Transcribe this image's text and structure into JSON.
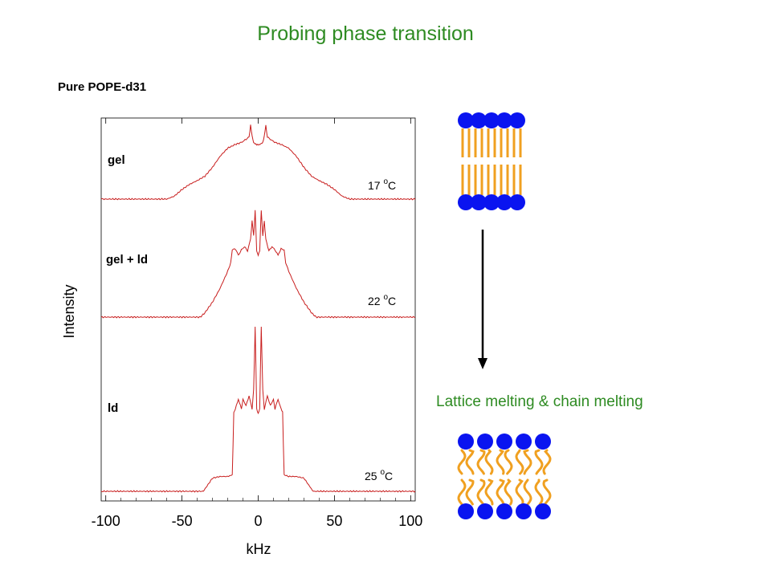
{
  "slide": {
    "title": "Probing phase transition",
    "sample_label": "Pure POPE-d31",
    "right_caption": "Lattice melting & chain melting"
  },
  "chart_data": {
    "type": "line",
    "title": "",
    "xlabel": "kHz",
    "ylabel": "Intensity",
    "xlim": [
      -103,
      103
    ],
    "xticks": [
      -100,
      -50,
      0,
      50,
      100
    ],
    "tick_labels": [
      "-100",
      "-50",
      "0",
      "50",
      "100"
    ],
    "grid": false,
    "line_color": "#c81e1e",
    "series": [
      {
        "name": "gel",
        "temperature": "17",
        "temperature_unit": "C",
        "x": [
          -103,
          -60,
          -55,
          -50,
          -45,
          -40,
          -35,
          -30,
          -25,
          -20,
          -17,
          -15,
          -12,
          -10,
          -8,
          -6,
          -5,
          -4,
          -3,
          -2,
          -1,
          0,
          1,
          2,
          3,
          4,
          5,
          6,
          8,
          10,
          12,
          15,
          17,
          20,
          25,
          30,
          35,
          40,
          45,
          50,
          55,
          60,
          103
        ],
        "y": [
          0,
          0,
          0.04,
          0.13,
          0.2,
          0.25,
          0.31,
          0.43,
          0.58,
          0.69,
          0.72,
          0.74,
          0.76,
          0.78,
          0.81,
          0.84,
          1.0,
          0.85,
          0.76,
          0.75,
          0.74,
          0.74,
          0.74,
          0.75,
          0.76,
          0.85,
          1.0,
          0.84,
          0.81,
          0.78,
          0.76,
          0.74,
          0.72,
          0.69,
          0.58,
          0.43,
          0.31,
          0.25,
          0.2,
          0.13,
          0.04,
          0,
          0
        ]
      },
      {
        "name": "gel + ld",
        "temperature": "22",
        "temperature_unit": "C",
        "x": [
          -103,
          -38,
          -35,
          -30,
          -25,
          -20,
          -18,
          -17,
          -15,
          -13,
          -11,
          -9,
          -7,
          -5,
          -4,
          -3,
          -2,
          -1,
          0,
          1,
          2,
          3,
          4,
          5,
          7,
          9,
          11,
          13,
          15,
          17,
          18,
          20,
          25,
          30,
          35,
          38,
          103
        ],
        "y": [
          0,
          0,
          0.04,
          0.14,
          0.27,
          0.43,
          0.51,
          0.63,
          0.64,
          0.58,
          0.63,
          0.66,
          0.62,
          0.73,
          0.9,
          0.76,
          1.0,
          0.62,
          0.58,
          0.62,
          1.0,
          0.76,
          0.9,
          0.73,
          0.62,
          0.66,
          0.63,
          0.58,
          0.64,
          0.63,
          0.51,
          0.43,
          0.27,
          0.14,
          0.04,
          0,
          0
        ]
      },
      {
        "name": "ld",
        "temperature": "25",
        "temperature_unit": "C",
        "x": [
          -103,
          -36,
          -33,
          -30,
          -25,
          -20,
          -17,
          -16,
          -15,
          -13,
          -11,
          -10,
          -8,
          -6,
          -4,
          -3,
          -2,
          -1,
          0,
          1,
          2,
          3,
          4,
          6,
          8,
          10,
          11,
          13,
          15,
          16,
          17,
          20,
          25,
          30,
          33,
          36,
          103
        ],
        "y": [
          0,
          0,
          0.04,
          0.08,
          0.09,
          0.09,
          0.1,
          0.48,
          0.5,
          0.56,
          0.5,
          0.56,
          0.52,
          0.58,
          0.5,
          0.62,
          1.0,
          0.5,
          0.47,
          0.5,
          1.0,
          0.62,
          0.5,
          0.58,
          0.52,
          0.56,
          0.5,
          0.56,
          0.5,
          0.48,
          0.1,
          0.09,
          0.09,
          0.08,
          0.04,
          0,
          0
        ]
      }
    ]
  },
  "diagram": {
    "bilayer_gel": {
      "head_color": "#0a14f0",
      "tail_color": "#f0a020",
      "tail_shape": "straight",
      "heads_per_leaflet": 5
    },
    "arrow": {
      "color": "#000000",
      "direction": "down"
    },
    "bilayer_ld": {
      "head_color": "#0a14f0",
      "tail_color": "#f0a020",
      "tail_shape": "wavy",
      "heads_per_leaflet": 5
    }
  }
}
